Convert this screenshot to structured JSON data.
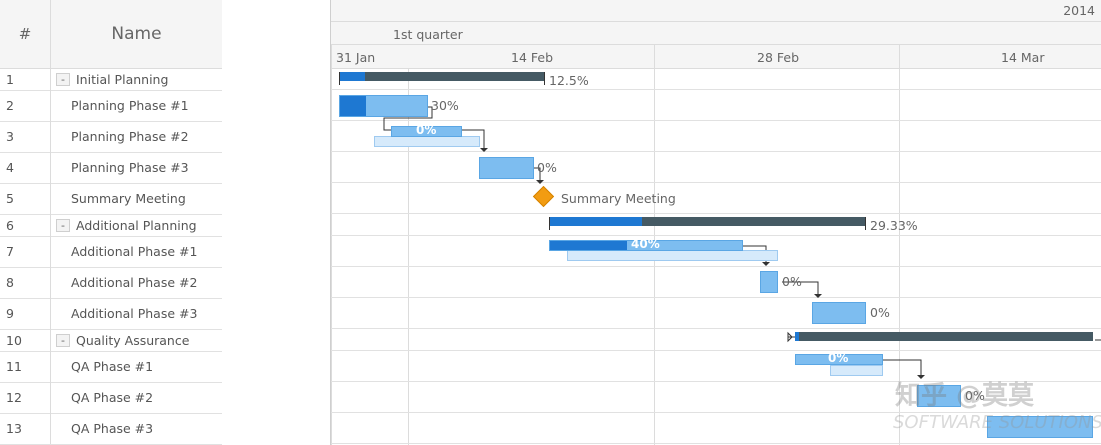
{
  "grid": {
    "col_num": "#",
    "col_name": "Name",
    "rows": [
      {
        "num": "1",
        "name": "Initial Planning",
        "collapsible": true
      },
      {
        "num": "2",
        "name": "Planning Phase #1",
        "collapsible": false
      },
      {
        "num": "3",
        "name": "Planning Phase #2",
        "collapsible": false
      },
      {
        "num": "4",
        "name": "Planning Phase #3",
        "collapsible": false
      },
      {
        "num": "5",
        "name": "Summary Meeting",
        "collapsible": false
      },
      {
        "num": "6",
        "name": "Additional Planning",
        "collapsible": true
      },
      {
        "num": "7",
        "name": "Additional Phase #1",
        "collapsible": false
      },
      {
        "num": "8",
        "name": "Additional Phase #2",
        "collapsible": false
      },
      {
        "num": "9",
        "name": "Additional Phase #3",
        "collapsible": false
      },
      {
        "num": "10",
        "name": "Quality Assurance",
        "collapsible": true
      },
      {
        "num": "11",
        "name": "QA Phase #1",
        "collapsible": false
      },
      {
        "num": "12",
        "name": "QA Phase #2",
        "collapsible": false
      },
      {
        "num": "13",
        "name": "QA Phase #3",
        "collapsible": false
      }
    ],
    "collapse_symbol": "-"
  },
  "timeline": {
    "year": "2014",
    "quarter": "1st quarter",
    "weeks": [
      "31 Jan",
      "14 Feb",
      "28 Feb",
      "14 Mar"
    ]
  },
  "tasks": {
    "initial_planning": {
      "label": "12.5%",
      "progress": 0.125
    },
    "planning_phase_1": {
      "label": "30%",
      "progress": 0.3
    },
    "planning_phase_2": {
      "label": "0%",
      "progress": 0
    },
    "planning_phase_3": {
      "label": "0%",
      "progress": 0
    },
    "summary_meeting": {
      "label": "Summary Meeting"
    },
    "additional_planning": {
      "label": "29.33%",
      "progress": 0.2933
    },
    "additional_phase_1": {
      "label": "40%",
      "progress": 0.4
    },
    "additional_phase_2": {
      "label": "0%",
      "progress": 0
    },
    "additional_phase_3": {
      "label": "0%",
      "progress": 0
    },
    "qa_phase_1": {
      "label": "0%",
      "progress": 0
    },
    "qa_phase_2": {
      "label": "0%",
      "progress": 0
    }
  },
  "colors": {
    "progress": "#1e78d2",
    "actual": "#7dbdf0",
    "baseline": "#d6eafb",
    "parent": "#455a64",
    "milestone": "#f29c12"
  },
  "watermark": {
    "line1": "知乎 @莫莫",
    "line2": "SOFTWARE SOLUTIONS"
  }
}
